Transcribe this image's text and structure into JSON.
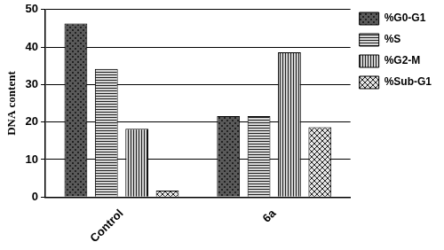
{
  "chart_data": {
    "type": "bar",
    "y_label": "DNA content",
    "categories": [
      "Control",
      "6a"
    ],
    "series": [
      {
        "name": "%G0-G1",
        "color": "#5a5a5a",
        "values": [
          46.3,
          21.6
        ]
      },
      {
        "name": "%S",
        "color": "#d9d9d9",
        "values": [
          34.2,
          21.6
        ]
      },
      {
        "name": "%G2-M",
        "color": "#cfcfcf",
        "values": [
          18.2,
          38.6
        ]
      },
      {
        "name": "%Sub-G1",
        "color": "#e6e6e6",
        "values": [
          1.7,
          18.6
        ]
      }
    ],
    "ylim": [
      0,
      50
    ],
    "yticks": [
      0,
      10,
      20,
      30,
      40,
      50
    ],
    "grid": true,
    "legend": "right"
  }
}
